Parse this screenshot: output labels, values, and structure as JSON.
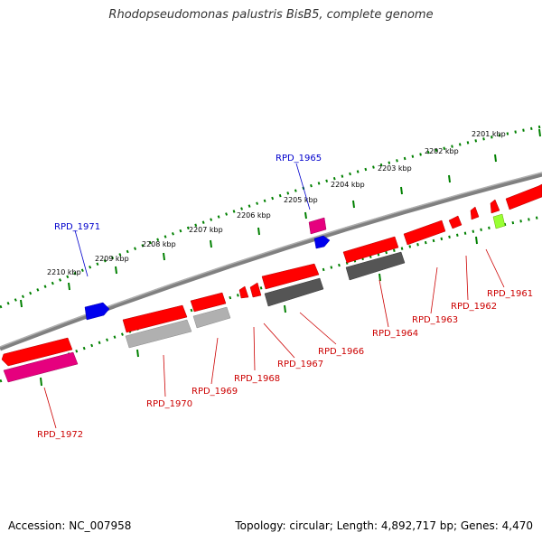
{
  "title": "Rhodopseudomonas palustris BisB5, complete genome",
  "footer": {
    "accession": "Accession: NC_007958",
    "summary": "Topology: circular; Length: 4,892,717 bp; Genes: 4,470"
  },
  "colors": {
    "forward_gene": "#ff0000",
    "reverse_gene": "#ff0000",
    "rna_gene": "#ff1493",
    "blue_feature": "#0000ff",
    "green_feature": "#7fff00",
    "backbone": "#808080",
    "tick": "#008000",
    "label_red": "#cc0000",
    "label_blue": "#0000cc"
  },
  "scale": {
    "ticks": [
      "2201 kbp",
      "2202 kbp",
      "2203 kbp",
      "2204 kbp",
      "2205 kbp",
      "2206 kbp",
      "2207 kbp",
      "2208 kbp",
      "2209 kbp",
      "2210 kbp"
    ]
  },
  "labels": [
    {
      "text": "RPD_1961",
      "color": "red"
    },
    {
      "text": "RPD_1962",
      "color": "red"
    },
    {
      "text": "RPD_1963",
      "color": "red"
    },
    {
      "text": "RPD_1964",
      "color": "red"
    },
    {
      "text": "RPD_1965",
      "color": "blue"
    },
    {
      "text": "RPD_1966",
      "color": "red"
    },
    {
      "text": "RPD_1967",
      "color": "red"
    },
    {
      "text": "RPD_1968",
      "color": "red"
    },
    {
      "text": "RPD_1969",
      "color": "red"
    },
    {
      "text": "RPD_1970",
      "color": "red"
    },
    {
      "text": "RPD_1971",
      "color": "blue"
    },
    {
      "text": "RPD_1972",
      "color": "red"
    }
  ]
}
